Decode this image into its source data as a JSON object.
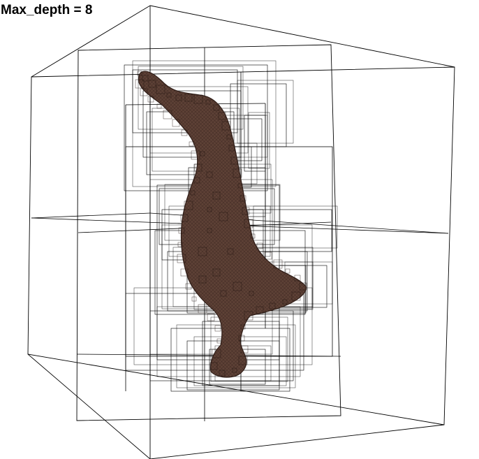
{
  "title": "Max_depth = 8",
  "colors": {
    "background": "#ffffff",
    "wireframe": "#000000",
    "mesh_fill": "#5e4136",
    "mesh_dark": "#2f1d17",
    "mesh_highlight": "#8a6252"
  }
}
